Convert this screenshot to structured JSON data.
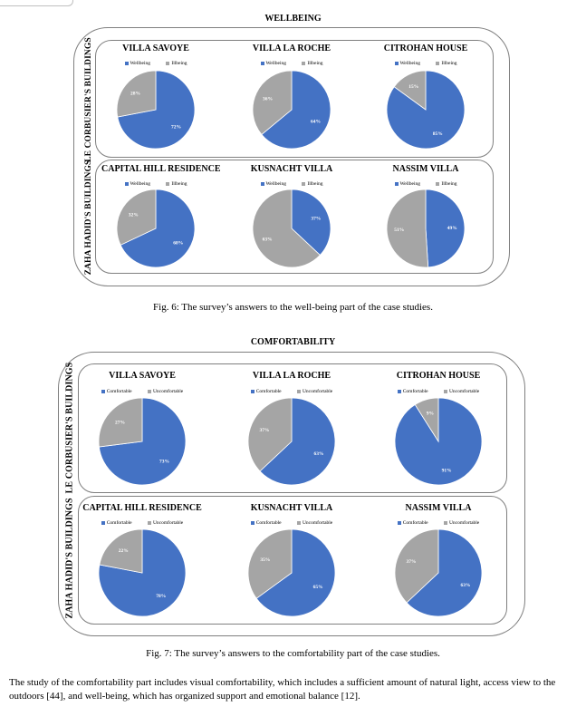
{
  "colors": {
    "primary": "#4472C4",
    "secondary": "#A5A5A5"
  },
  "figures": [
    {
      "title": "WELLBEING",
      "caption": "Fig. 6: The survey’s answers to the well-being part of the case studies.",
      "groups": [
        {
          "label": "LE CORBUSIER'S BUILDINGS"
        },
        {
          "label": "ZAHA HADID'S BUILDINGS"
        }
      ],
      "chart_data": [
        {
          "type": "pie",
          "title": "VILLA SAVOYE",
          "categories": [
            "Wellbeing",
            "Illbeing"
          ],
          "values": [
            72,
            28
          ],
          "labels": [
            "72%",
            "28%"
          ]
        },
        {
          "type": "pie",
          "title": "VILLA LA ROCHE",
          "categories": [
            "Wellbeing",
            "Illbeing"
          ],
          "values": [
            64,
            36
          ],
          "labels": [
            "64%",
            "36%"
          ]
        },
        {
          "type": "pie",
          "title": "CITROHAN HOUSE",
          "categories": [
            "Wellbeing",
            "Illbeing"
          ],
          "values": [
            85,
            15
          ],
          "labels": [
            "85%",
            "15%"
          ]
        },
        {
          "type": "pie",
          "title": "CAPITAL HILL RESIDENCE",
          "categories": [
            "Wellbeing",
            "Illbeing"
          ],
          "values": [
            68,
            32
          ],
          "labels": [
            "68%",
            "32%"
          ]
        },
        {
          "type": "pie",
          "title": "KUSNACHT VILLA",
          "categories": [
            "Wellbeing",
            "Illbeing"
          ],
          "values": [
            37,
            63
          ],
          "labels": [
            "37%",
            "63%"
          ]
        },
        {
          "type": "pie",
          "title": "NASSIM VILLA",
          "categories": [
            "Wellbeing",
            "Illbeing"
          ],
          "values": [
            49,
            51
          ],
          "labels": [
            "49%",
            "51%"
          ]
        }
      ]
    },
    {
      "title": "COMFORTABILITY",
      "caption": "Fig. 7: The survey’s answers to the comfortability part of the case studies.",
      "groups": [
        {
          "label": "LE CORBUSIER'S BUILDINGS"
        },
        {
          "label": "ZAHA HADID'S BUILDINGS"
        }
      ],
      "chart_data": [
        {
          "type": "pie",
          "title": "VILLA SAVOYE",
          "categories": [
            "Comfortable",
            "Uncomfortable"
          ],
          "values": [
            73,
            27
          ],
          "labels": [
            "73%",
            "27%"
          ]
        },
        {
          "type": "pie",
          "title": "VILLA LA ROCHE",
          "categories": [
            "Comfortable",
            "Uncomfortable"
          ],
          "values": [
            63,
            37
          ],
          "labels": [
            "63%",
            "37%"
          ]
        },
        {
          "type": "pie",
          "title": "CITROHAN HOUSE",
          "categories": [
            "Comfortable",
            "Uncomfortable"
          ],
          "values": [
            91,
            9
          ],
          "labels": [
            "91%",
            "9%"
          ]
        },
        {
          "type": "pie",
          "title": "CAPITAL HILL RESIDENCE",
          "categories": [
            "Comfortable",
            "Uncomfortable"
          ],
          "values": [
            78,
            22
          ],
          "labels": [
            "78%",
            "22%"
          ]
        },
        {
          "type": "pie",
          "title": "KUSNACHT VILLA",
          "categories": [
            "Comfortable",
            "Uncomfortable"
          ],
          "values": [
            65,
            35
          ],
          "labels": [
            "65%",
            "35%"
          ]
        },
        {
          "type": "pie",
          "title": "NASSIM VILLA",
          "categories": [
            "Comfortable",
            "Uncomfortable"
          ],
          "values": [
            63,
            37
          ],
          "labels": [
            "63%",
            "37%"
          ]
        }
      ]
    }
  ],
  "body_text": "The study of the comfortability part includes visual comfortability, which includes a sufficient amount of natural light, access view to the outdoors [44], and well-being, which has organized support and emotional balance [12]."
}
